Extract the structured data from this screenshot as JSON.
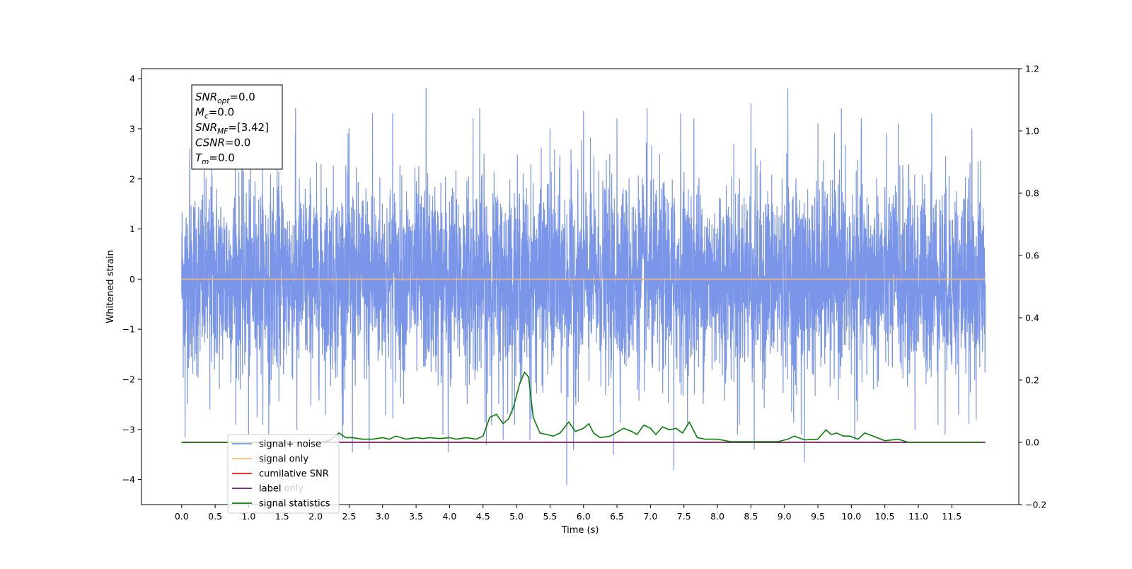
{
  "chart_data": {
    "type": "line",
    "xlabel": "Time (s)",
    "ylabel": "Whitened strain",
    "xlim": [
      -0.6,
      12.5
    ],
    "ylim": [
      -4.5,
      4.2
    ],
    "y2lim": [
      -0.2,
      1.2
    ],
    "x_ticks": [
      0.0,
      0.5,
      1.0,
      1.5,
      2.0,
      2.5,
      3.0,
      3.5,
      4.0,
      4.5,
      5.0,
      5.5,
      6.0,
      6.5,
      7.0,
      7.5,
      8.0,
      8.5,
      9.0,
      9.5,
      10.0,
      10.5,
      11.0,
      11.5
    ],
    "x_tick_labels": [
      "0.0",
      "0.5",
      "1.0",
      "1.5",
      "2.0",
      "2.5",
      "3.0",
      "3.5",
      "4.0",
      "4.5",
      "5.0",
      "5.5",
      "6.0",
      "6.5",
      "7.0",
      "7.5",
      "8.0",
      "8.5",
      "9.0",
      "9.5",
      "10.0",
      "10.5",
      "11.0",
      "11.5"
    ],
    "y_ticks": [
      -4,
      -3,
      -2,
      -1,
      0,
      1,
      2,
      3,
      4
    ],
    "y_tick_labels": [
      "−4",
      "−3",
      "−2",
      "−1",
      "0",
      "1",
      "2",
      "3",
      "4"
    ],
    "y2_ticks": [
      -0.2,
      0.0,
      0.2,
      0.4,
      0.6,
      0.8,
      1.0,
      1.2
    ],
    "y2_tick_labels": [
      "−0.2",
      "0.0",
      "0.2",
      "0.4",
      "0.6",
      "0.8",
      "1.0",
      "1.2"
    ],
    "grid": false,
    "legend_position": "lower-left",
    "series": [
      {
        "name": "signal+ noise",
        "axis": "left",
        "color": "#7b96e8",
        "generated": true,
        "x_range": [
          0.0,
          12.0
        ],
        "spikes": [
          [
            0.05,
            -3.15
          ],
          [
            0.12,
            2.6
          ],
          [
            0.42,
            -2.6
          ],
          [
            0.45,
            3.2
          ],
          [
            0.8,
            3.05
          ],
          [
            1.0,
            -3.1
          ],
          [
            1.3,
            -3.2
          ],
          [
            1.7,
            3.4
          ],
          [
            1.72,
            -3.0
          ],
          [
            2.4,
            -3.2
          ],
          [
            2.5,
            3.0
          ],
          [
            2.55,
            -3.45
          ],
          [
            2.8,
            -3.4
          ],
          [
            2.85,
            3.3
          ],
          [
            3.15,
            3.3
          ],
          [
            3.65,
            3.8
          ],
          [
            3.9,
            -3.1
          ],
          [
            3.98,
            -3.45
          ],
          [
            4.35,
            3.2
          ],
          [
            4.45,
            3.4
          ],
          [
            4.55,
            -3.3
          ],
          [
            4.8,
            -3.2
          ],
          [
            5.2,
            -3.2
          ],
          [
            5.5,
            3.0
          ],
          [
            5.75,
            -4.1
          ],
          [
            5.85,
            -3.4
          ],
          [
            6.0,
            3.35
          ],
          [
            6.45,
            -3.5
          ],
          [
            6.5,
            3.2
          ],
          [
            6.95,
            3.4
          ],
          [
            7.35,
            -3.8
          ],
          [
            7.45,
            3.3
          ],
          [
            7.65,
            3.2
          ],
          [
            8.3,
            -3.1
          ],
          [
            8.5,
            3.5
          ],
          [
            8.55,
            -3.4
          ],
          [
            9.05,
            3.8
          ],
          [
            9.25,
            -3.1
          ],
          [
            9.3,
            -3.65
          ],
          [
            9.5,
            3.1
          ],
          [
            9.85,
            3.4
          ],
          [
            10.05,
            -3.2
          ],
          [
            10.15,
            3.2
          ],
          [
            10.7,
            3.1
          ],
          [
            10.95,
            -3.0
          ],
          [
            11.2,
            3.3
          ],
          [
            11.4,
            -3.1
          ],
          [
            11.6,
            -2.7
          ],
          [
            11.8,
            3.0
          ]
        ]
      },
      {
        "name": "signal only",
        "axis": "left",
        "color": "#f5b97a",
        "x": [
          0.0,
          12.0
        ],
        "y": [
          0.0,
          0.0
        ]
      },
      {
        "name": "cumilative SNR",
        "axis": "right",
        "color": "#e8191b",
        "x": [
          0.0,
          12.0
        ],
        "y": [
          0.0,
          0.0
        ]
      },
      {
        "name": "label",
        "axis": "right",
        "color": "#6a1b6e",
        "x": [
          0.0,
          12.0
        ],
        "y": [
          0.0,
          0.0
        ]
      },
      {
        "name": "signal statistics",
        "axis": "right",
        "color": "#0b7d0b",
        "x": [
          0.0,
          1.0,
          2.0,
          2.2,
          2.35,
          2.45,
          2.55,
          2.7,
          2.85,
          3.0,
          3.1,
          3.2,
          3.35,
          3.5,
          3.6,
          3.7,
          3.85,
          4.0,
          4.1,
          4.25,
          4.4,
          4.5,
          4.6,
          4.7,
          4.8,
          4.88,
          4.95,
          5.05,
          5.12,
          5.18,
          5.25,
          5.35,
          5.45,
          5.55,
          5.65,
          5.78,
          5.88,
          6.0,
          6.08,
          6.15,
          6.25,
          6.4,
          6.6,
          6.72,
          6.8,
          6.9,
          7.0,
          7.08,
          7.18,
          7.28,
          7.38,
          7.48,
          7.58,
          7.7,
          7.82,
          8.0,
          8.2,
          8.6,
          8.9,
          9.05,
          9.15,
          9.3,
          9.5,
          9.62,
          9.7,
          9.78,
          9.88,
          9.98,
          10.1,
          10.2,
          10.35,
          10.5,
          10.7,
          10.85,
          11.2,
          11.95
        ],
        "y": [
          0.0,
          0.0,
          0.0,
          0.005,
          0.03,
          0.015,
          0.015,
          0.01,
          0.01,
          0.015,
          0.01,
          0.02,
          0.01,
          0.015,
          0.012,
          0.015,
          0.012,
          0.015,
          0.01,
          0.015,
          0.01,
          0.02,
          0.08,
          0.09,
          0.06,
          0.075,
          0.11,
          0.19,
          0.225,
          0.21,
          0.08,
          0.03,
          0.025,
          0.02,
          0.03,
          0.065,
          0.035,
          0.045,
          0.06,
          0.03,
          0.015,
          0.02,
          0.045,
          0.035,
          0.025,
          0.055,
          0.045,
          0.025,
          0.05,
          0.04,
          0.045,
          0.03,
          0.065,
          0.015,
          0.01,
          0.01,
          0.002,
          0.002,
          0.002,
          0.01,
          0.02,
          0.008,
          0.01,
          0.04,
          0.025,
          0.03,
          0.02,
          0.02,
          0.01,
          0.03,
          0.018,
          0.005,
          0.01,
          0.0,
          0.0,
          0.0
        ]
      }
    ],
    "annotation_box": {
      "lines": [
        {
          "name": "SNR",
          "sub": "opt",
          "value": "=0.0"
        },
        {
          "name": "M",
          "sub": "c",
          "value": "=0.0"
        },
        {
          "name": "SNR",
          "sub": "MF",
          "value": "=[3.42]"
        },
        {
          "name": "CSNR",
          "sub": "",
          "value": "=0.0"
        },
        {
          "name": "T",
          "sub": "m",
          "value": "=0.0"
        }
      ]
    },
    "legend_overlap_text": "label only"
  }
}
